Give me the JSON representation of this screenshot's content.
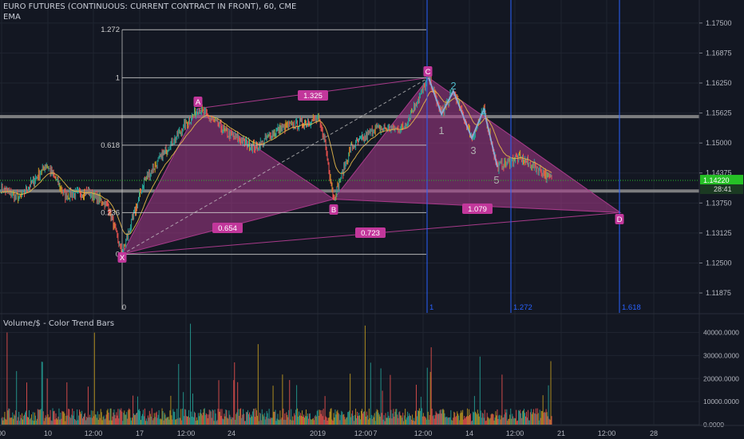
{
  "header": {
    "title": "EURO FUTURES (CONTINUOUS: CURRENT CONTRACT IN FRONT), 60, CME",
    "indicator": "EMA"
  },
  "volume_panel": {
    "title": "Volume/$ - Color Trend Bars",
    "axis_labels": [
      "40000.0000",
      "30000.0000",
      "20000.0000",
      "10000.0000",
      "0.0000"
    ],
    "ylim": [
      0,
      44000
    ]
  },
  "price_axis": {
    "labels": [
      "1.17500",
      "1.16875",
      "1.16250",
      "1.15625",
      "1.15000",
      "1.14375",
      "1.13750",
      "1.13125",
      "1.12500",
      "1.11875"
    ],
    "current_price": "1.14220",
    "countdown": "28:41",
    "ylim": [
      1.1146,
      1.1798
    ]
  },
  "time_axis": {
    "labels": [
      "00",
      "10",
      "12:00",
      "17",
      "12:00",
      "24",
      "2019",
      "12:00",
      "7",
      "12:00",
      "14",
      "12:00",
      "21",
      "12:00",
      "28"
    ]
  },
  "harmonic_pattern": {
    "points": [
      {
        "name": "X",
        "price": 1.1268
      },
      {
        "name": "A",
        "price": 1.1572
      },
      {
        "name": "B",
        "price": 1.1383
      },
      {
        "name": "C",
        "price": 1.1636
      },
      {
        "name": "D",
        "price": 1.1355
      }
    ],
    "ratios": [
      "1.325",
      "0.654",
      "0.723",
      "1.079"
    ]
  },
  "fib_retracement": {
    "levels": [
      "1.272",
      "1",
      "0.618",
      "0.236",
      "0"
    ]
  },
  "fib_time_zones": {
    "labels": [
      "1",
      "1.272",
      "1.618"
    ]
  },
  "elliott_wave": {
    "labels": [
      "1",
      "2",
      "3",
      "4",
      "5"
    ]
  },
  "colors": {
    "background": "#131722",
    "pattern_fill": "#a83a8a",
    "pattern_label_bg": "#c2379b",
    "fib_time_lines": "#2962ff",
    "current_price": "#26c026",
    "wave_label": "#4fb8c8",
    "bar_up": "#26a69a",
    "bar_down": "#ef5350",
    "bar_neutral": "#c8a020"
  }
}
